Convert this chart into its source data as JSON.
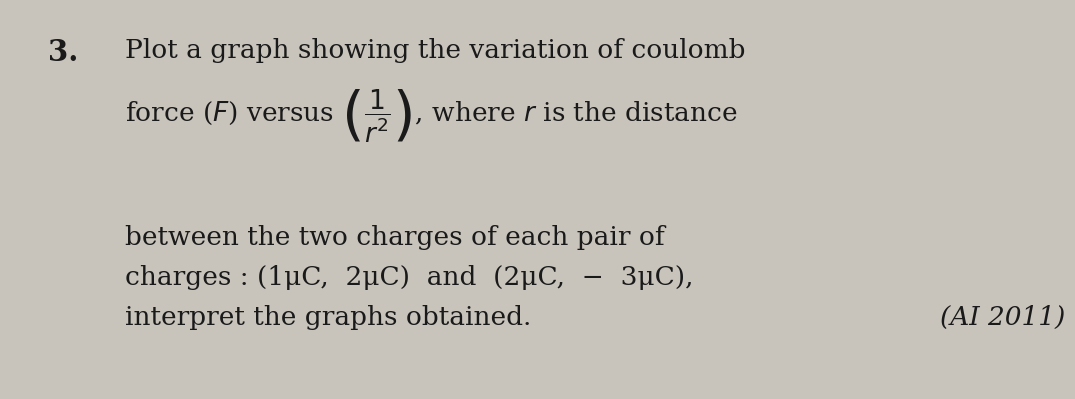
{
  "background_color": "#c8c4bc",
  "text_color": "#1a1a1a",
  "font_size_main": 19,
  "font_size_number": 21,
  "line1": "Plot a graph showing the variation of coulomb",
  "line3": "between the two charges of each pair of",
  "line4": "charges : (1μC,  2μC)  and  (2μC,  −  3μC),",
  "line5_left": "interpret the graphs obtained.",
  "line5_right": "(AI 2011)"
}
